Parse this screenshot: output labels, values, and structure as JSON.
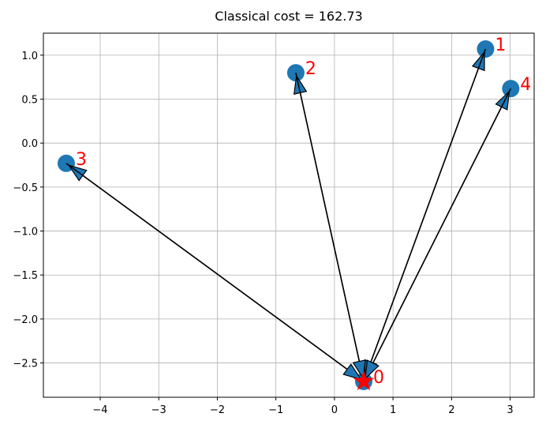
{
  "chart_data": {
    "type": "scatter",
    "title": "Classical cost = 162.73",
    "x": [
      0.5,
      2.58,
      -0.66,
      -4.58,
      3.01
    ],
    "y": [
      -2.71,
      1.07,
      0.8,
      -0.23,
      0.62
    ],
    "labels": [
      "0",
      "1",
      "2",
      "3",
      "4"
    ],
    "edges": [
      [
        0,
        1
      ],
      [
        0,
        2
      ],
      [
        0,
        3
      ],
      [
        0,
        4
      ],
      [
        1,
        0
      ],
      [
        2,
        0
      ],
      [
        3,
        0
      ],
      [
        4,
        0
      ]
    ],
    "depot": 0,
    "color": "#1f77b4",
    "label_color": "#ff0000",
    "depot_color": "#ff0000",
    "edge_color": "#000000",
    "xlim": [
      -4.97,
      3.41
    ],
    "xticks": [
      {
        "value": -4,
        "label": "−4"
      },
      {
        "value": -3,
        "label": "−3"
      },
      {
        "value": -2,
        "label": "−2"
      },
      {
        "value": -1,
        "label": "−1"
      },
      0,
      1,
      2,
      3
    ],
    "ylim": [
      -2.89,
      1.25
    ],
    "yticks": [
      {
        "value": -2.5,
        "label": "−2.5"
      },
      {
        "value": -2,
        "label": "−2.0"
      },
      {
        "value": -1.5,
        "label": "−1.5"
      },
      {
        "value": -1,
        "label": "−1.0"
      },
      {
        "value": -0.5,
        "label": "−0.5"
      },
      {
        "value": 0,
        "label": "0.0"
      },
      {
        "value": 0.5,
        "label": "0.5"
      },
      {
        "value": 1,
        "label": "1.0"
      }
    ],
    "grid": true
  }
}
